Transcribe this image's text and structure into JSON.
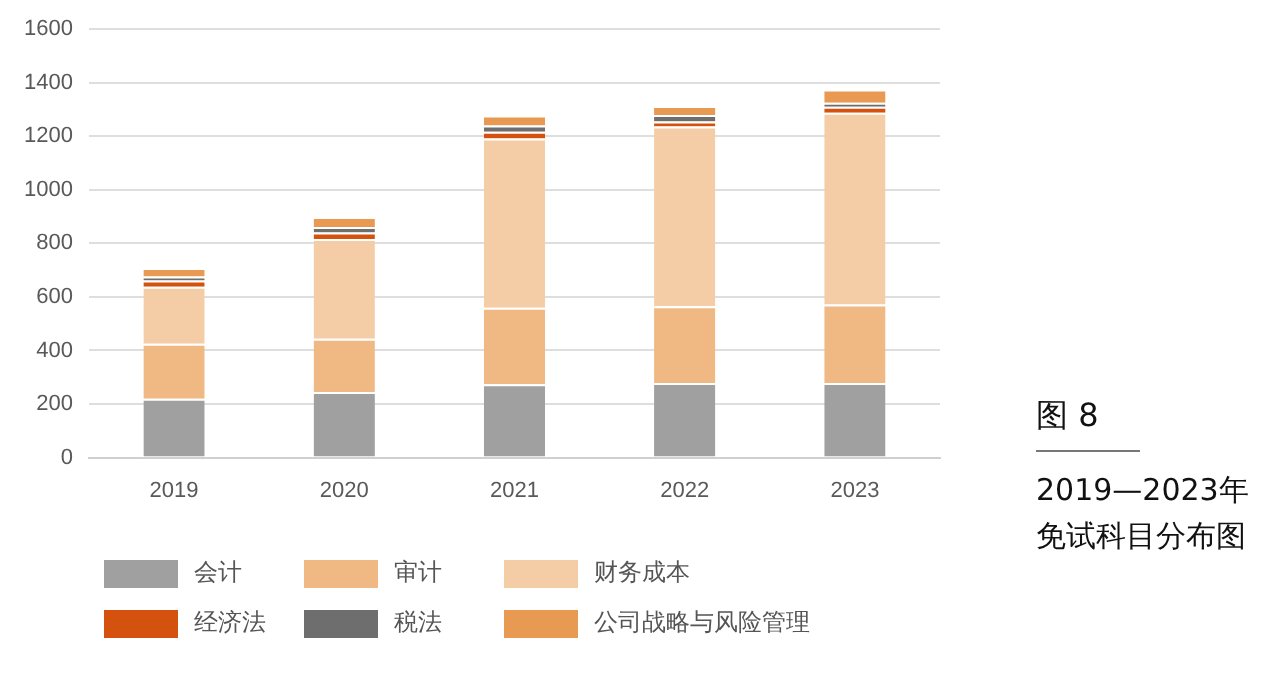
{
  "chart_data": {
    "type": "bar",
    "title": "图 8",
    "subtitle": "2019—2023年免试科目分布图",
    "stacked": true,
    "categories": [
      "2019",
      "2020",
      "2021",
      "2022",
      "2023"
    ],
    "series": [
      {
        "name": "会计",
        "color": "#a0a0a0",
        "values": [
          220,
          245,
          274,
          279,
          279
        ]
      },
      {
        "name": "审计",
        "color": "#f0b882",
        "values": [
          205,
          199,
          286,
          286,
          293
        ]
      },
      {
        "name": "财务成本",
        "color": "#f4cda6",
        "values": [
          213,
          372,
          632,
          672,
          716
        ]
      },
      {
        "name": "经济法",
        "color": "#d4520e",
        "values": [
          23,
          25,
          25,
          18,
          22
        ]
      },
      {
        "name": "税法",
        "color": "#6e6e6e",
        "values": [
          15,
          20,
          23,
          25,
          15
        ]
      },
      {
        "name": "公司战略与风险管理",
        "color": "#e89a52",
        "values": [
          32,
          38,
          38,
          33,
          50
        ]
      }
    ],
    "ylim": [
      0,
      1600
    ],
    "yticks": [
      0,
      200,
      400,
      600,
      800,
      1000,
      1200,
      1400,
      1600
    ],
    "grid": "y",
    "legend": "bottom"
  }
}
